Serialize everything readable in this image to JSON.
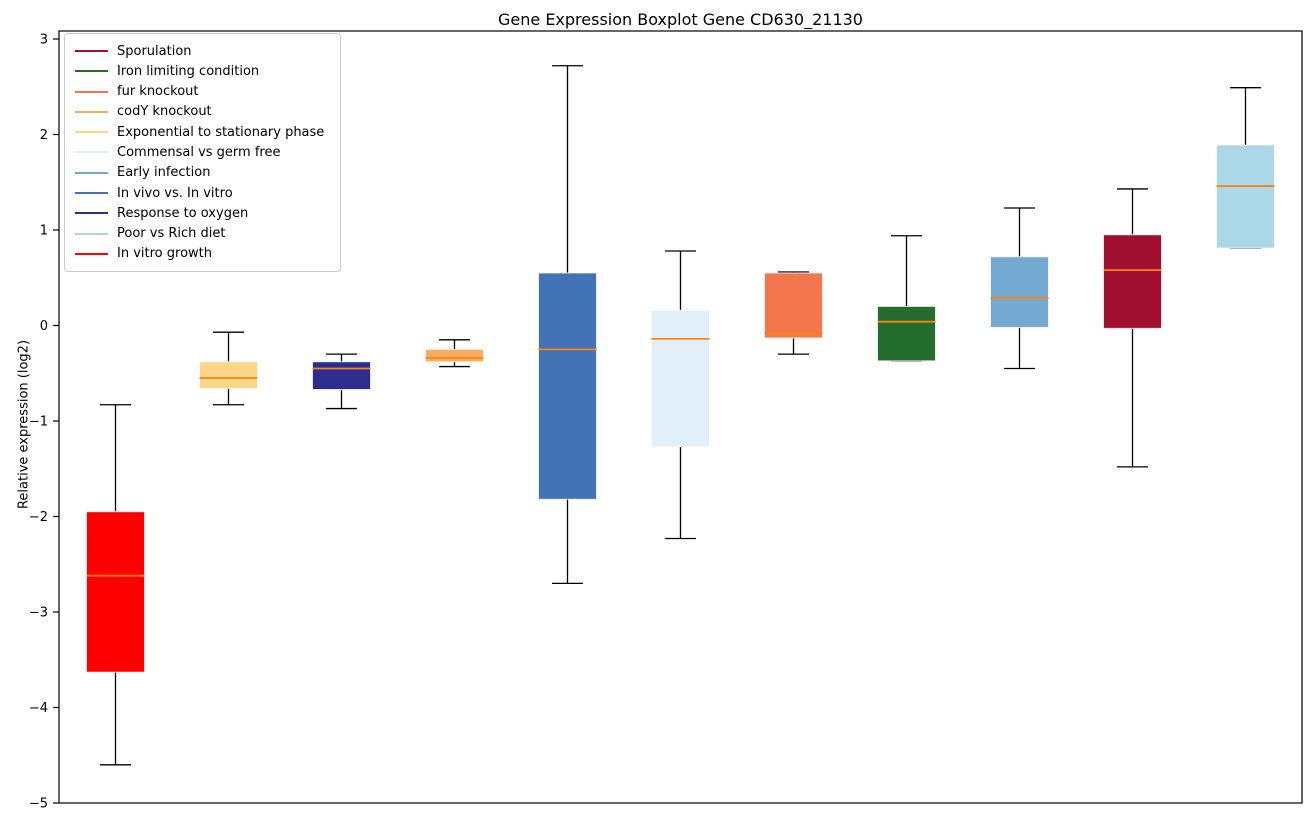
{
  "chart_data": {
    "type": "boxplot",
    "title": "Gene Expression Boxplot Gene CD630_21130",
    "ylabel": "Relative expression (log2)",
    "xlabel": "",
    "ylim": [
      -5,
      3.08
    ],
    "yticks": [
      3,
      2,
      1,
      0,
      -1,
      -2,
      -3,
      -4,
      -5
    ],
    "grid": false,
    "legend_position": "upper-left",
    "colors": {
      "median_line": "#ff820e",
      "whisker": "#000000",
      "axis": "#000000"
    },
    "legend": [
      {
        "label": "Sporulation",
        "color": "#A11030"
      },
      {
        "label": "Iron limiting condition",
        "color": "#256D2E"
      },
      {
        "label": "fur knockout",
        "color": "#F4764E"
      },
      {
        "label": "codY knockout",
        "color": "#FBAC60"
      },
      {
        "label": "Exponential to stationary phase",
        "color": "#FCD788"
      },
      {
        "label": "Commensal vs germ free",
        "color": "#E1F0F8"
      },
      {
        "label": "Early infection",
        "color": "#74AAD1"
      },
      {
        "label": "In vivo vs. In vitro",
        "color": "#4273B4"
      },
      {
        "label": "Response to oxygen",
        "color": "#2B2D8F"
      },
      {
        "label": "Poor vs Rich diet",
        "color": "#ACD7E8"
      },
      {
        "label": "In vitro growth",
        "color": "#FF0000"
      }
    ],
    "boxes": [
      {
        "label": "In vitro growth",
        "color": "#FF0000",
        "whisker_low": -4.6,
        "q1": -3.63,
        "median": -2.62,
        "q3": -1.95,
        "whisker_high": -0.83
      },
      {
        "label": "Exponential to stationary phase",
        "color": "#FCD788",
        "whisker_low": -0.83,
        "q1": -0.66,
        "median": -0.55,
        "q3": -0.38,
        "whisker_high": -0.07
      },
      {
        "label": "Response to oxygen",
        "color": "#2B2D8F",
        "whisker_low": -0.87,
        "q1": -0.67,
        "median": -0.45,
        "q3": -0.38,
        "whisker_high": -0.3
      },
      {
        "label": "codY knockout",
        "color": "#FBAC60",
        "whisker_low": -0.43,
        "q1": -0.38,
        "median": -0.34,
        "q3": -0.25,
        "whisker_high": -0.15
      },
      {
        "label": "In vivo vs. In vitro",
        "color": "#4273B4",
        "whisker_low": -2.7,
        "q1": -1.82,
        "median": -0.25,
        "q3": 0.55,
        "whisker_high": 2.72
      },
      {
        "label": "Commensal vs germ free",
        "color": "#E1F0F8",
        "whisker_low": -2.23,
        "q1": -1.27,
        "median": -0.14,
        "q3": 0.16,
        "whisker_high": 0.78
      },
      {
        "label": "fur knockout",
        "color": "#F4764E",
        "whisker_low": -0.3,
        "q1": -0.13,
        "median": -0.08,
        "q3": 0.55,
        "whisker_high": 0.56
      },
      {
        "label": "Iron limiting condition",
        "color": "#256D2E",
        "whisker_low": -0.37,
        "q1": -0.37,
        "median": 0.04,
        "q3": 0.2,
        "whisker_high": 0.94
      },
      {
        "label": "Early infection",
        "color": "#74AAD1",
        "whisker_low": -0.45,
        "q1": -0.02,
        "median": 0.29,
        "q3": 0.72,
        "whisker_high": 1.23
      },
      {
        "label": "Sporulation",
        "color": "#A11030",
        "whisker_low": -1.48,
        "q1": -0.03,
        "median": 0.58,
        "q3": 0.95,
        "whisker_high": 1.43
      },
      {
        "label": "Poor vs Rich diet",
        "color": "#ACD7E8",
        "whisker_low": 0.81,
        "q1": 0.81,
        "median": 1.46,
        "q3": 1.89,
        "whisker_high": 2.49
      }
    ]
  }
}
